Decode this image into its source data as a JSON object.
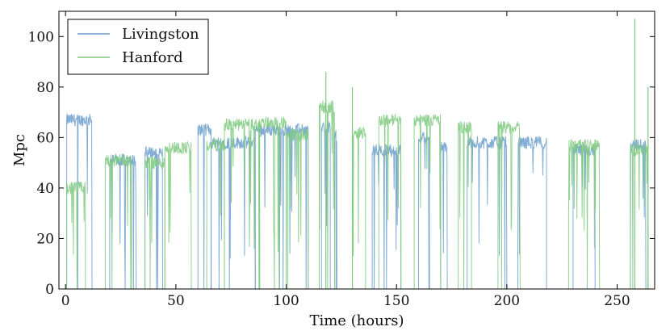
{
  "chart_data": {
    "type": "line",
    "title": "",
    "xlabel": "Time (hours)",
    "ylabel": "Mpc",
    "xlim": [
      -3,
      267
    ],
    "ylim": [
      0,
      110
    ],
    "xticks": [
      0,
      50,
      100,
      150,
      200,
      250
    ],
    "yticks": [
      0,
      20,
      40,
      60,
      80,
      100
    ],
    "legend_position": "top-left",
    "series": [
      {
        "name": "Livingston",
        "color": "#6b9ecb",
        "segments": [
          {
            "start": 0.5,
            "end": 12,
            "level": 67
          },
          {
            "start": 20,
            "end": 32,
            "level": 51
          },
          {
            "start": 36,
            "end": 44,
            "level": 54
          },
          {
            "start": 60,
            "end": 66,
            "level": 63
          },
          {
            "start": 66,
            "end": 86,
            "level": 58
          },
          {
            "start": 86,
            "end": 110,
            "level": 63
          },
          {
            "start": 116,
            "end": 120,
            "level": 64
          },
          {
            "start": 122,
            "end": 123,
            "level": 61
          },
          {
            "start": 139,
            "end": 152,
            "level": 55
          },
          {
            "start": 160,
            "end": 165,
            "level": 60
          },
          {
            "start": 170,
            "end": 173,
            "level": 56
          },
          {
            "start": 182,
            "end": 200,
            "level": 58
          },
          {
            "start": 205,
            "end": 218,
            "level": 58
          },
          {
            "start": 230,
            "end": 240,
            "level": 55
          },
          {
            "start": 256,
            "end": 263,
            "level": 57
          }
        ]
      },
      {
        "name": "Hanford",
        "color": "#7ec97e",
        "segments": [
          {
            "start": 0.5,
            "end": 9,
            "level": 40
          },
          {
            "start": 18,
            "end": 30,
            "level": 51
          },
          {
            "start": 36,
            "end": 45,
            "level": 50
          },
          {
            "start": 45,
            "end": 57,
            "level": 56
          },
          {
            "start": 64,
            "end": 72,
            "level": 57
          },
          {
            "start": 72,
            "end": 88,
            "level": 65
          },
          {
            "start": 88,
            "end": 100,
            "level": 66
          },
          {
            "start": 100,
            "end": 110,
            "level": 61
          },
          {
            "start": 115,
            "end": 122,
            "level": 72
          },
          {
            "start": 130,
            "end": 136,
            "level": 62
          },
          {
            "start": 142,
            "end": 152,
            "level": 67
          },
          {
            "start": 158,
            "end": 170,
            "level": 67
          },
          {
            "start": 178,
            "end": 184,
            "level": 64
          },
          {
            "start": 196,
            "end": 206,
            "level": 64
          },
          {
            "start": 228,
            "end": 242,
            "level": 57
          },
          {
            "start": 256,
            "end": 264,
            "level": 55
          }
        ],
        "spikes": [
          {
            "x": 118,
            "y": 86
          },
          {
            "x": 130,
            "y": 80
          },
          {
            "x": 258,
            "y": 107
          },
          {
            "x": 264,
            "y": 80
          }
        ]
      }
    ]
  }
}
